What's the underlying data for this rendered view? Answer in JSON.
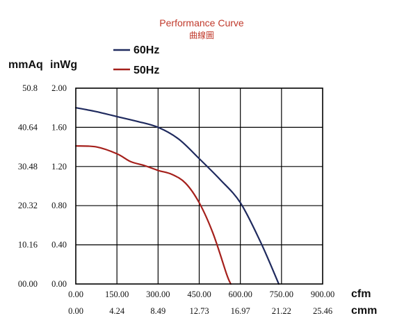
{
  "chart_data": {
    "type": "line",
    "title": "Performance Curve",
    "subtitle": "曲線圖",
    "xlabel_primary": "cfm",
    "xlabel_secondary": "cmm",
    "ylabel_primary": "inWg",
    "ylabel_secondary": "mmAq",
    "xlim": [
      0,
      900
    ],
    "ylim": [
      0,
      2.0
    ],
    "x_ticks_cfm": [
      "0.00",
      "150.00",
      "300.00",
      "450.00",
      "600.00",
      "750.00",
      "900.00"
    ],
    "x_ticks_cmm": [
      "0.00",
      "4.24",
      "8.49",
      "12.73",
      "16.97",
      "21.22",
      "25.46"
    ],
    "y_ticks_inwg": [
      "0.00",
      "0.40",
      "0.80",
      "1.20",
      "1.60",
      "2.00"
    ],
    "y_ticks_mmaq": [
      "00.00",
      "10.16",
      "20.32",
      "30.48",
      "40.64",
      "50.8"
    ],
    "grid": true,
    "legend_position": "top-left",
    "series": [
      {
        "name": "60Hz",
        "color": "#1f2a5e",
        "x": [
          0,
          75,
          150,
          225,
          300,
          375,
          450,
          525,
          600,
          675,
          740
        ],
        "y": [
          1.8,
          1.76,
          1.71,
          1.66,
          1.6,
          1.48,
          1.28,
          1.07,
          0.83,
          0.42,
          0.0
        ]
      },
      {
        "name": "50Hz",
        "color": "#a5201c",
        "x": [
          0,
          75,
          150,
          200,
          250,
          300,
          350,
          400,
          450,
          500,
          550,
          565
        ],
        "y": [
          1.41,
          1.4,
          1.33,
          1.25,
          1.21,
          1.16,
          1.12,
          1.03,
          0.83,
          0.52,
          0.1,
          0.0
        ]
      }
    ]
  }
}
